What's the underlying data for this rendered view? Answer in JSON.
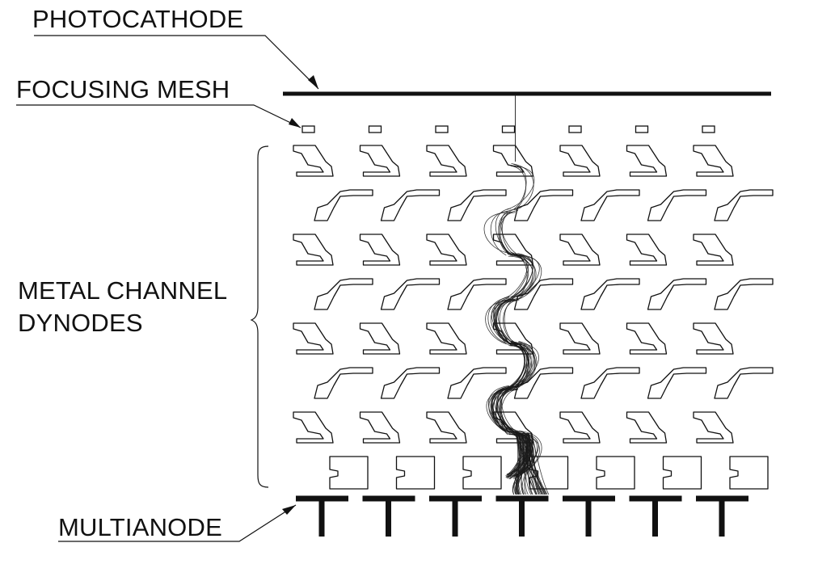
{
  "diagram": {
    "labels": {
      "photocathode": "PHOTOCATHODE",
      "focusing_mesh": "FOCUSING MESH",
      "dynodes_line1": "METAL CHANNEL",
      "dynodes_line2": "DYNODES",
      "multianode": "MULTIANODE"
    },
    "channels": 7,
    "dynode_stages": 7,
    "tracked_channel": 4,
    "colors": {
      "line": "#111111",
      "electron_tracks": "#1a1a1a",
      "background": "#ffffff"
    }
  }
}
